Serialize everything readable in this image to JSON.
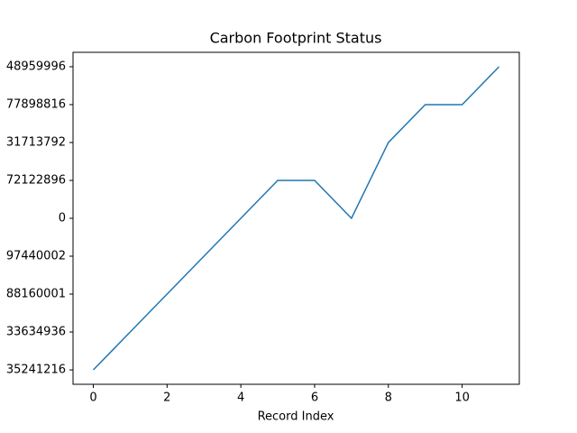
{
  "chart_data": {
    "type": "line",
    "title": "Carbon Footprint Status",
    "xlabel": "Record Index",
    "x": [
      0,
      1,
      2,
      3,
      4,
      5,
      6,
      7,
      8,
      9,
      10,
      11
    ],
    "series": [
      {
        "color": "#1f77b4",
        "values": [
          0,
          1,
          2,
          3,
          4,
          5,
          5,
          4,
          6,
          7,
          7,
          8
        ]
      }
    ],
    "xlim": [
      -0.55,
      11.55
    ],
    "xticks": [
      0,
      2,
      4,
      6,
      8,
      10
    ],
    "ylim": [
      -0.38,
      8.38
    ],
    "yticks": [
      {
        "value": 0,
        "label": "35241216"
      },
      {
        "value": 1,
        "label": "33634936"
      },
      {
        "value": 2,
        "label": "88160001"
      },
      {
        "value": 3,
        "label": "97440002"
      },
      {
        "value": 4,
        "label": "0"
      },
      {
        "value": 5,
        "label": "72122896"
      },
      {
        "value": 6,
        "label": "31713792"
      },
      {
        "value": 7,
        "label": "77898816"
      },
      {
        "value": 8,
        "label": "48959996"
      }
    ]
  }
}
